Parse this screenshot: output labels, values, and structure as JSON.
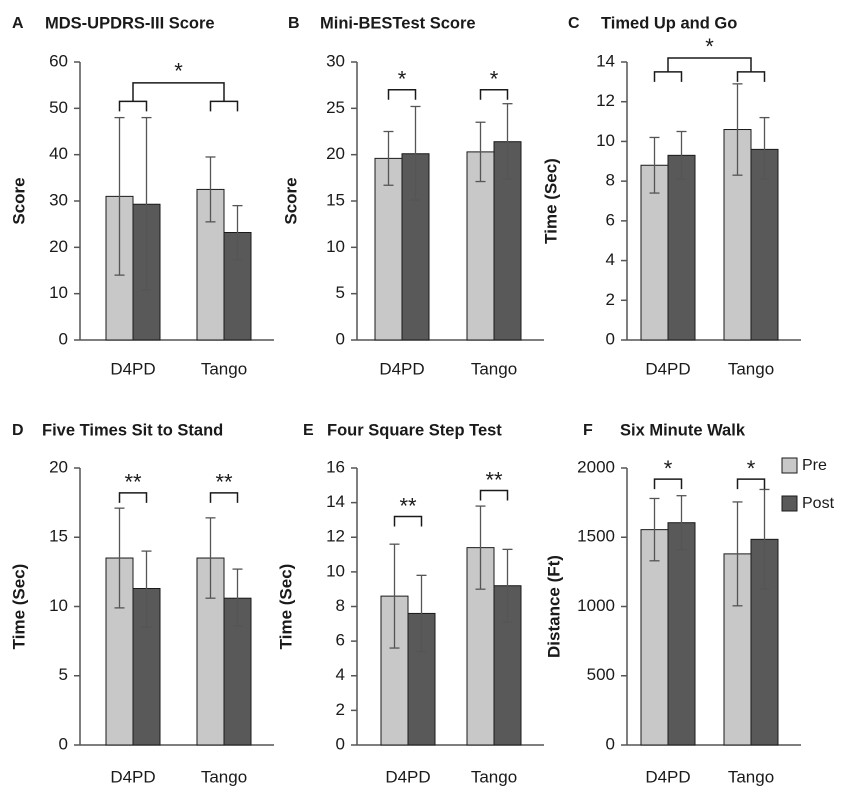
{
  "legend": [
    {
      "label": "Pre",
      "color": "#c8c8c8"
    },
    {
      "label": "Post",
      "color": "#595959"
    }
  ],
  "colors": {
    "bar_stroke": "#1a1a1a",
    "axis": "#555555",
    "error_bar": "#555555",
    "bracket": "#1a1a1a"
  },
  "chart_data": [
    {
      "letter": "A",
      "title": "MDS-UPDRS-III Score",
      "type": "bar",
      "categories": [
        "D4PD",
        "Tango"
      ],
      "series": [
        {
          "name": "Pre",
          "values": [
            31,
            32.5
          ],
          "error_low": [
            14,
            25.5
          ],
          "error_high": [
            48,
            39.5
          ]
        },
        {
          "name": "Post",
          "values": [
            29.3,
            23.2
          ],
          "error_low": [
            10.8,
            17.3
          ],
          "error_high": [
            48,
            29
          ]
        }
      ],
      "ylabel": "Score",
      "xlabel": "",
      "ylim": [
        0,
        60
      ],
      "yticks": [
        0,
        10,
        20,
        30,
        40,
        50,
        60
      ],
      "significance": [
        {
          "type": "pair",
          "group": 0,
          "label": "",
          "y": 51.5
        },
        {
          "type": "pair",
          "group": 1,
          "label": "",
          "y": 51.5
        },
        {
          "type": "between",
          "label": "*",
          "y": 55.5
        }
      ]
    },
    {
      "letter": "B",
      "title": "Mini-BESTest Score",
      "type": "bar",
      "categories": [
        "D4PD",
        "Tango"
      ],
      "series": [
        {
          "name": "Pre",
          "values": [
            19.6,
            20.3
          ],
          "error_low": [
            16.7,
            17.1
          ],
          "error_high": [
            22.5,
            23.5
          ]
        },
        {
          "name": "Post",
          "values": [
            20.1,
            21.4
          ],
          "error_low": [
            15.1,
            17.4
          ],
          "error_high": [
            25.2,
            25.5
          ]
        }
      ],
      "ylabel": "Score",
      "xlabel": "",
      "ylim": [
        0,
        30
      ],
      "yticks": [
        0,
        5,
        10,
        15,
        20,
        25,
        30
      ],
      "significance": [
        {
          "type": "pair",
          "group": 0,
          "label": "*",
          "y": 27
        },
        {
          "type": "pair",
          "group": 1,
          "label": "*",
          "y": 27
        }
      ]
    },
    {
      "letter": "C",
      "title": "Timed Up and Go",
      "type": "bar",
      "categories": [
        "D4PD",
        "Tango"
      ],
      "series": [
        {
          "name": "Pre",
          "values": [
            8.8,
            10.6
          ],
          "error_low": [
            7.4,
            8.3
          ],
          "error_high": [
            10.2,
            12.9
          ]
        },
        {
          "name": "Post",
          "values": [
            9.3,
            9.6
          ],
          "error_low": [
            8.1,
            8.1
          ],
          "error_high": [
            10.5,
            11.2
          ]
        }
      ],
      "ylabel": "Time (Sec)",
      "xlabel": "",
      "ylim": [
        0,
        14
      ],
      "yticks": [
        0,
        2,
        4,
        6,
        8,
        10,
        12,
        14
      ],
      "significance": [
        {
          "type": "pair",
          "group": 0,
          "label": "",
          "y": 13.5
        },
        {
          "type": "pair",
          "group": 1,
          "label": "",
          "y": 13.5
        },
        {
          "type": "between",
          "label": "*",
          "y": 14.2
        }
      ]
    },
    {
      "letter": "D",
      "title": "Five Times Sit to Stand",
      "type": "bar",
      "categories": [
        "D4PD",
        "Tango"
      ],
      "series": [
        {
          "name": "Pre",
          "values": [
            13.5,
            13.5
          ],
          "error_low": [
            9.9,
            10.6
          ],
          "error_high": [
            17.1,
            16.4
          ]
        },
        {
          "name": "Post",
          "values": [
            11.3,
            10.6
          ],
          "error_low": [
            8.5,
            8.6
          ],
          "error_high": [
            14,
            12.7
          ]
        }
      ],
      "ylabel": "Time (Sec)",
      "xlabel": "",
      "ylim": [
        0,
        20
      ],
      "yticks": [
        0,
        5,
        10,
        15,
        20
      ],
      "significance": [
        {
          "type": "pair",
          "group": 0,
          "label": "**",
          "y": 18.2
        },
        {
          "type": "pair",
          "group": 1,
          "label": "**",
          "y": 18.2
        }
      ]
    },
    {
      "letter": "E",
      "title": "Four Square Step Test",
      "type": "bar",
      "categories": [
        "D4PD",
        "Tango"
      ],
      "series": [
        {
          "name": "Pre",
          "values": [
            8.6,
            11.4
          ],
          "error_low": [
            5.6,
            9
          ],
          "error_high": [
            11.6,
            13.8
          ]
        },
        {
          "name": "Post",
          "values": [
            7.6,
            9.2
          ],
          "error_low": [
            5.4,
            7.1
          ],
          "error_high": [
            9.8,
            11.3
          ]
        }
      ],
      "ylabel": "Time (Sec)",
      "xlabel": "",
      "ylim": [
        0,
        16
      ],
      "yticks": [
        0,
        2,
        4,
        6,
        8,
        10,
        12,
        14,
        16
      ],
      "significance": [
        {
          "type": "pair",
          "group": 0,
          "label": "**",
          "y": 13.2
        },
        {
          "type": "pair",
          "group": 1,
          "label": "**",
          "y": 14.7
        }
      ]
    },
    {
      "letter": "F",
      "title": "Six Minute Walk",
      "type": "bar",
      "categories": [
        "D4PD",
        "Tango"
      ],
      "series": [
        {
          "name": "Pre",
          "values": [
            1555,
            1380
          ],
          "error_low": [
            1330,
            1005
          ],
          "error_high": [
            1780,
            1755
          ]
        },
        {
          "name": "Post",
          "values": [
            1605,
            1485
          ],
          "error_low": [
            1410,
            1125
          ],
          "error_high": [
            1800,
            1845
          ]
        }
      ],
      "ylabel": "Distance (Ft)",
      "xlabel": "",
      "ylim": [
        0,
        2000
      ],
      "yticks": [
        0,
        500,
        1000,
        1500,
        2000
      ],
      "significance": [
        {
          "type": "pair",
          "group": 0,
          "label": "*",
          "y": 1920
        },
        {
          "type": "pair",
          "group": 1,
          "label": "*",
          "y": 1920
        }
      ]
    }
  ]
}
